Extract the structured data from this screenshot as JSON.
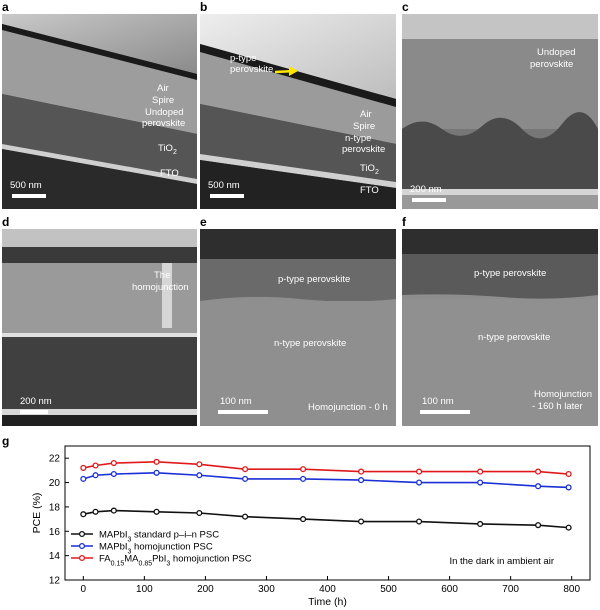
{
  "panels": {
    "a": {
      "tag": "a",
      "labels": [
        "Air",
        "Spire",
        "Undoped",
        "perovskite",
        "TiO",
        "2",
        "FTO"
      ],
      "scale": "500 nm"
    },
    "b": {
      "tag": "b",
      "labels": [
        "Air",
        "Spire",
        "p-type",
        "perovskite",
        "n-type",
        "perovskite",
        "TiO",
        "2",
        "FTO"
      ],
      "scale": "500 nm"
    },
    "c": {
      "tag": "c",
      "labels": [
        "Undoped",
        "perovskite"
      ],
      "scale": "200 nm"
    },
    "d": {
      "tag": "d",
      "labels": [
        "The",
        "homojunction"
      ],
      "scale": "200 nm"
    },
    "e": {
      "tag": "e",
      "labels": [
        "p-type perovskite",
        "n-type perovskite",
        "Homojunction - 0 h"
      ],
      "scale": "100 nm"
    },
    "f": {
      "tag": "f",
      "labels": [
        "p-type perovskite",
        "n-type perovskite",
        "Homojunction",
        "- 160 h later"
      ],
      "scale": "100 nm"
    },
    "g": {
      "tag": "g"
    }
  },
  "chart_data": {
    "type": "line",
    "xlabel": "Time (h)",
    "ylabel": "PCE (%)",
    "xlim": [
      -30,
      830
    ],
    "ylim": [
      12,
      23
    ],
    "xticks": [
      0,
      100,
      200,
      300,
      400,
      500,
      600,
      700,
      800
    ],
    "yticks": [
      12,
      14,
      16,
      18,
      20,
      22
    ],
    "annotation": "In the dark in ambient air",
    "legend_position": "lower-left",
    "series": [
      {
        "name": "MAPbI3 standard p–i–n PSC",
        "legend_main": "MAPbI",
        "legend_sub": "3",
        "legend_rest": " standard p–i–n PSC",
        "color": "#111111",
        "x": [
          0,
          20,
          50,
          120,
          190,
          265,
          360,
          455,
          550,
          650,
          745,
          795
        ],
        "y": [
          17.4,
          17.6,
          17.7,
          17.6,
          17.5,
          17.2,
          17.0,
          16.8,
          16.8,
          16.6,
          16.5,
          16.3
        ]
      },
      {
        "name": "MAPbI3 homojunction PSC",
        "legend_main": "MAPbI",
        "legend_sub": "3",
        "legend_rest": " homojunction PSC",
        "color": "#1a2fd6",
        "x": [
          0,
          20,
          50,
          120,
          190,
          265,
          360,
          455,
          550,
          650,
          745,
          795
        ],
        "y": [
          20.3,
          20.6,
          20.7,
          20.8,
          20.6,
          20.3,
          20.3,
          20.2,
          20.0,
          20.0,
          19.7,
          19.6
        ]
      },
      {
        "name": "FA0.15MA0.85PbI3 homojunction PSC",
        "legend_main": "FA",
        "legend_sub1": "0.15",
        "legend_mid": "MA",
        "legend_sub2": "0.85",
        "legend_mid2": "PbI",
        "legend_sub3": "3",
        "legend_rest": " homojunction PSC",
        "color": "#e0191b",
        "x": [
          0,
          20,
          50,
          120,
          190,
          265,
          360,
          455,
          550,
          650,
          745,
          795
        ],
        "y": [
          21.2,
          21.4,
          21.6,
          21.7,
          21.5,
          21.1,
          21.1,
          20.9,
          20.9,
          20.9,
          20.9,
          20.7
        ]
      }
    ]
  }
}
